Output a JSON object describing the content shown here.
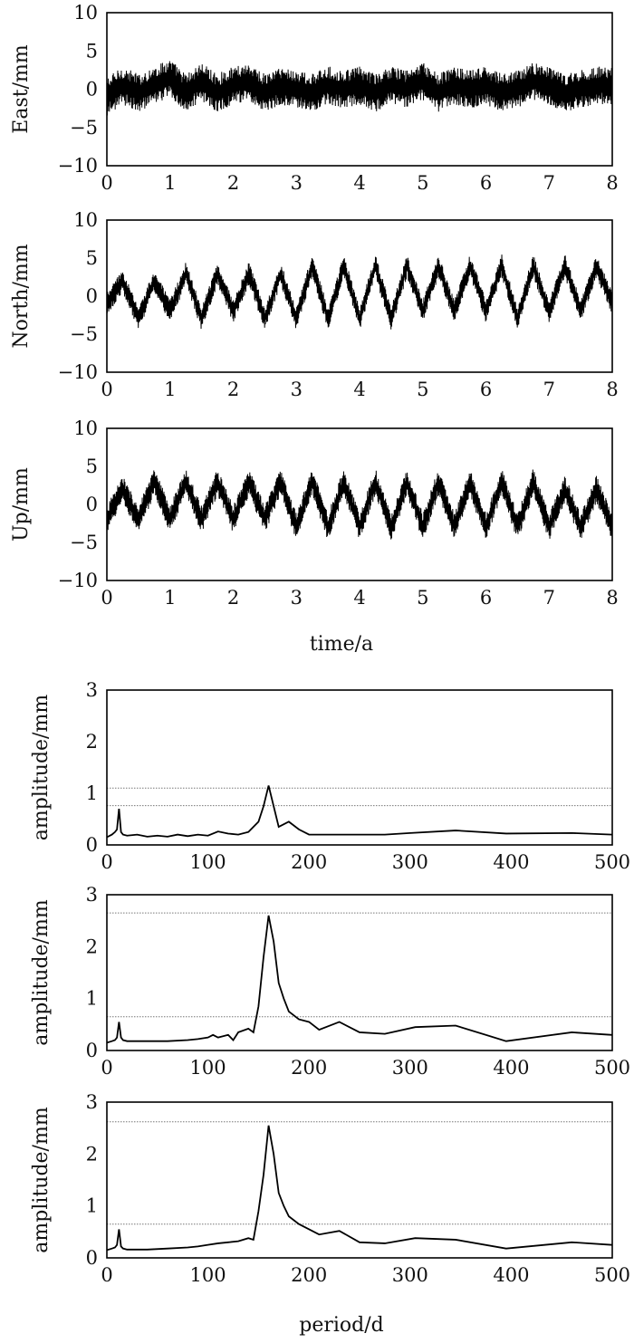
{
  "chart_data": [
    {
      "type": "line",
      "ylabel": "East/mm",
      "xlabel": "",
      "xlim": [
        0,
        8
      ],
      "ylim": [
        -10,
        10
      ],
      "xticks": [
        "0",
        "1",
        "2",
        "3",
        "4",
        "5",
        "6",
        "7",
        "8"
      ],
      "yticks": [
        "10",
        "5",
        "0",
        "−5",
        "−10"
      ],
      "xtick_values": [
        0,
        1,
        2,
        3,
        4,
        5,
        6,
        7,
        8
      ],
      "ytick_values": [
        10,
        5,
        0,
        -5,
        -10
      ],
      "grid": false,
      "series": [
        {
          "x": [
            0,
            0.25,
            0.5,
            0.75,
            1,
            1.25,
            1.5,
            1.75,
            2,
            2.25,
            2.5,
            2.75,
            3,
            3.25,
            3.5,
            3.75,
            4,
            4.25,
            4.5,
            4.75,
            5,
            5.25,
            5.5,
            5.75,
            6,
            6.25,
            6.5,
            6.75,
            7,
            7.25,
            7.5,
            7.75,
            8
          ],
          "y": [
            -1,
            0.5,
            -0.5,
            0.5,
            1.5,
            -0.5,
            1,
            -0.5,
            0.5,
            1,
            -0.5,
            0.5,
            0,
            -0.5,
            0.5,
            0,
            0.5,
            -0.5,
            0.5,
            0,
            1,
            -0.5,
            0.5,
            0,
            0.5,
            -0.5,
            0,
            1,
            0.5,
            -0.5,
            0,
            0.5,
            0.5
          ],
          "noise_amplitude": 2.5
        }
      ]
    },
    {
      "type": "line",
      "ylabel": "North/mm",
      "xlabel": "",
      "xlim": [
        0,
        8
      ],
      "ylim": [
        -10,
        10
      ],
      "xticks": [
        "0",
        "1",
        "2",
        "3",
        "4",
        "5",
        "6",
        "7",
        "8"
      ],
      "yticks": [
        "10",
        "5",
        "0",
        "−5",
        "−10"
      ],
      "xtick_values": [
        0,
        1,
        2,
        3,
        4,
        5,
        6,
        7,
        8
      ],
      "ytick_values": [
        10,
        5,
        0,
        -5,
        -10
      ],
      "grid": false,
      "series": [
        {
          "x": [
            0,
            0.25,
            0.5,
            0.75,
            1,
            1.25,
            1.5,
            1.75,
            2,
            2.25,
            2.5,
            2.75,
            3,
            3.25,
            3.5,
            3.75,
            4,
            4.25,
            4.5,
            4.75,
            5,
            5.25,
            5.5,
            5.75,
            6,
            6.25,
            6.5,
            6.75,
            7,
            7.25,
            7.5,
            7.75,
            8
          ],
          "y": [
            -1,
            2,
            -3,
            2,
            -2,
            3,
            -3,
            3,
            -2,
            3,
            -3,
            3,
            -3,
            4,
            -3,
            4,
            -3,
            4,
            -3,
            4,
            -2,
            4,
            -2,
            4,
            -2,
            4,
            -3,
            4,
            -2,
            4,
            -2,
            4,
            -1
          ],
          "noise_amplitude": 1.5
        }
      ]
    },
    {
      "type": "line",
      "ylabel": "Up/mm",
      "xlabel": "time/a",
      "xlim": [
        0,
        8
      ],
      "ylim": [
        -10,
        10
      ],
      "xticks": [
        "0",
        "1",
        "2",
        "3",
        "4",
        "5",
        "6",
        "7",
        "8"
      ],
      "yticks": [
        "10",
        "5",
        "0",
        "−5",
        "−10"
      ],
      "xtick_values": [
        0,
        1,
        2,
        3,
        4,
        5,
        6,
        7,
        8
      ],
      "ytick_values": [
        10,
        5,
        0,
        -5,
        -10
      ],
      "grid": false,
      "series": [
        {
          "x": [
            0,
            0.25,
            0.5,
            0.75,
            1,
            1.25,
            1.5,
            1.75,
            2,
            2.25,
            2.5,
            2.75,
            3,
            3.25,
            3.5,
            3.75,
            4,
            4.25,
            4.5,
            4.75,
            5,
            5.25,
            5.5,
            5.75,
            6,
            6.25,
            6.5,
            6.75,
            7,
            7.25,
            7.5,
            7.75,
            8
          ],
          "y": [
            -2,
            2,
            -2,
            3,
            -2,
            3,
            -2,
            3,
            -2,
            3,
            -2,
            3,
            -3,
            3,
            -3,
            3,
            -3,
            3,
            -3,
            3,
            -3,
            3,
            -3,
            3,
            -3,
            3,
            -3,
            3,
            -3,
            2,
            -3,
            2,
            -3
          ],
          "noise_amplitude": 1.8
        }
      ]
    },
    {
      "type": "line",
      "ylabel": "amplitude/mm",
      "xlabel": "",
      "xlim": [
        0,
        500
      ],
      "ylim": [
        0,
        3
      ],
      "xticks": [
        "0",
        "100",
        "200",
        "300",
        "400",
        "500"
      ],
      "yticks": [
        "3",
        "2",
        "1",
        "0"
      ],
      "xtick_values": [
        0,
        100,
        200,
        300,
        400,
        500
      ],
      "ytick_values": [
        3,
        2,
        1,
        0
      ],
      "grid": false,
      "reference_lines": [
        1.1,
        0.76
      ],
      "series": [
        {
          "x": [
            0,
            5,
            8,
            10,
            12,
            14,
            16,
            20,
            30,
            40,
            50,
            60,
            70,
            80,
            90,
            100,
            110,
            120,
            130,
            140,
            150,
            155,
            160,
            165,
            170,
            175,
            180,
            190,
            200,
            210,
            230,
            250,
            275,
            300,
            345,
            395,
            460,
            500
          ],
          "y": [
            0.15,
            0.2,
            0.25,
            0.3,
            0.7,
            0.25,
            0.2,
            0.18,
            0.2,
            0.16,
            0.18,
            0.16,
            0.2,
            0.17,
            0.2,
            0.18,
            0.26,
            0.22,
            0.2,
            0.25,
            0.45,
            0.75,
            1.15,
            0.75,
            0.35,
            0.4,
            0.45,
            0.3,
            0.2,
            0.2,
            0.2,
            0.2,
            0.2,
            0.23,
            0.28,
            0.22,
            0.23,
            0.2
          ]
        }
      ]
    },
    {
      "type": "line",
      "ylabel": "amplitude/mm",
      "xlabel": "",
      "xlim": [
        0,
        500
      ],
      "ylim": [
        0,
        3
      ],
      "xticks": [
        "0",
        "100",
        "200",
        "300",
        "400",
        "500"
      ],
      "yticks": [
        "3",
        "2",
        "1",
        "0"
      ],
      "xtick_values": [
        0,
        100,
        200,
        300,
        400,
        500
      ],
      "ytick_values": [
        3,
        2,
        1,
        0
      ],
      "grid": false,
      "reference_lines": [
        2.65,
        0.65
      ],
      "series": [
        {
          "x": [
            0,
            5,
            8,
            10,
            12,
            14,
            16,
            20,
            40,
            60,
            80,
            90,
            100,
            105,
            110,
            120,
            125,
            130,
            140,
            145,
            150,
            155,
            160,
            165,
            170,
            175,
            180,
            190,
            200,
            210,
            230,
            250,
            275,
            305,
            345,
            395,
            460,
            500
          ],
          "y": [
            0.15,
            0.18,
            0.2,
            0.25,
            0.55,
            0.25,
            0.2,
            0.18,
            0.18,
            0.18,
            0.2,
            0.22,
            0.25,
            0.3,
            0.25,
            0.3,
            0.2,
            0.35,
            0.42,
            0.35,
            0.85,
            1.8,
            2.6,
            2.1,
            1.3,
            1.0,
            0.75,
            0.6,
            0.55,
            0.4,
            0.55,
            0.35,
            0.32,
            0.45,
            0.48,
            0.18,
            0.35,
            0.3
          ]
        }
      ]
    },
    {
      "type": "line",
      "ylabel": "amplitude/mm",
      "xlabel": "period/d",
      "xlim": [
        0,
        500
      ],
      "ylim": [
        0,
        3
      ],
      "xticks": [
        "0",
        "100",
        "200",
        "300",
        "400",
        "500"
      ],
      "yticks": [
        "3",
        "2",
        "1",
        "0"
      ],
      "xtick_values": [
        0,
        100,
        200,
        300,
        400,
        500
      ],
      "ytick_values": [
        3,
        2,
        1,
        0
      ],
      "grid": false,
      "reference_lines": [
        2.62,
        0.65
      ],
      "series": [
        {
          "x": [
            0,
            5,
            8,
            10,
            12,
            14,
            16,
            20,
            40,
            60,
            80,
            90,
            100,
            110,
            120,
            130,
            140,
            145,
            150,
            155,
            160,
            165,
            170,
            175,
            180,
            190,
            200,
            210,
            230,
            250,
            275,
            305,
            345,
            395,
            460,
            500
          ],
          "y": [
            0.15,
            0.18,
            0.2,
            0.25,
            0.55,
            0.22,
            0.18,
            0.16,
            0.16,
            0.18,
            0.2,
            0.22,
            0.25,
            0.28,
            0.3,
            0.32,
            0.38,
            0.35,
            0.9,
            1.6,
            2.55,
            2.0,
            1.25,
            1.0,
            0.8,
            0.65,
            0.55,
            0.45,
            0.52,
            0.3,
            0.28,
            0.38,
            0.35,
            0.18,
            0.3,
            0.25
          ]
        }
      ]
    }
  ]
}
